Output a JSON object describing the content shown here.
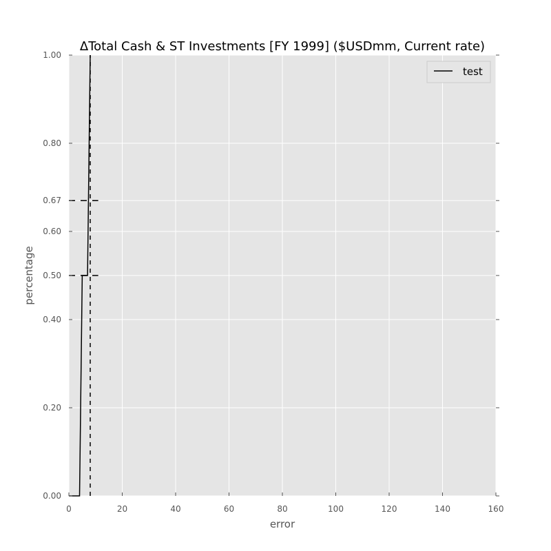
{
  "chart_data": {
    "type": "line",
    "title": "ΔTotal Cash & ST Investments [FY 1999] ($USDmm, Current rate)",
    "xlabel": "error",
    "ylabel": "percentage",
    "xlim": [
      0,
      160
    ],
    "ylim": [
      0,
      1
    ],
    "xticks": [
      0,
      20,
      40,
      60,
      80,
      100,
      120,
      140,
      160
    ],
    "xtick_labels": [
      "0",
      "20",
      "40",
      "60",
      "80",
      "100",
      "120",
      "140",
      "160"
    ],
    "yticks": [
      0.0,
      0.2,
      0.4,
      0.5,
      0.6,
      0.67,
      0.8,
      1.0
    ],
    "ytick_labels": [
      "0.00",
      "0.20",
      "0.40",
      "0.50",
      "0.60",
      "0.67",
      "0.80",
      "1.00"
    ],
    "grid": true,
    "legend_position": "top-right",
    "series": [
      {
        "name": "test",
        "color": "#000000",
        "points": [
          [
            0,
            0
          ],
          [
            4,
            0
          ],
          [
            5,
            0.5
          ],
          [
            7,
            0.5
          ],
          [
            8,
            1.0
          ]
        ]
      }
    ],
    "reference_lines": {
      "color": "#000000",
      "style": "dashed",
      "vertical_x": 8,
      "horizontal_y": [
        0.5,
        0.67
      ],
      "horizontal_x_range": [
        0,
        11
      ]
    },
    "colors": {
      "plot_background": "#e5e5e5",
      "grid": "#ffffff",
      "axis_text": "#555555",
      "legend_background": "#e5e5e5",
      "legend_border": "#cccccc"
    }
  }
}
